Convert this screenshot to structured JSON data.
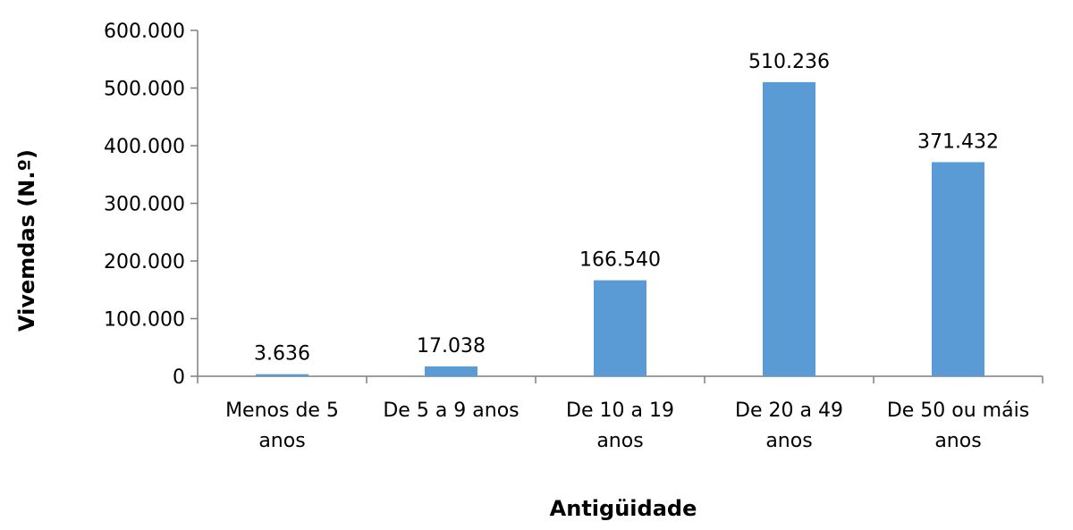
{
  "chart_data": {
    "type": "bar",
    "categories": [
      [
        "Menos de 5",
        "anos"
      ],
      [
        "De 5 a 9 anos"
      ],
      [
        "De 10 a 19",
        "anos"
      ],
      [
        "De 20 a 49",
        "anos"
      ],
      [
        "De 50 ou máis",
        "anos"
      ]
    ],
    "values": [
      3636,
      17038,
      166540,
      510236,
      371432
    ],
    "value_labels": [
      "3.636",
      "17.038",
      "166.540",
      "510.236",
      "371.432"
    ],
    "xlabel": "Antigüidade",
    "ylabel": "Vivemdas (N.º)",
    "ylim": [
      0,
      600000
    ],
    "yticks": [
      0,
      100000,
      200000,
      300000,
      400000,
      500000,
      600000
    ],
    "ytick_labels": [
      "0",
      "100.000",
      "200.000",
      "300.000",
      "400.000",
      "500.000",
      "600.000"
    ],
    "grid": false,
    "legend": "none",
    "bar_color": "#5b9bd5"
  }
}
